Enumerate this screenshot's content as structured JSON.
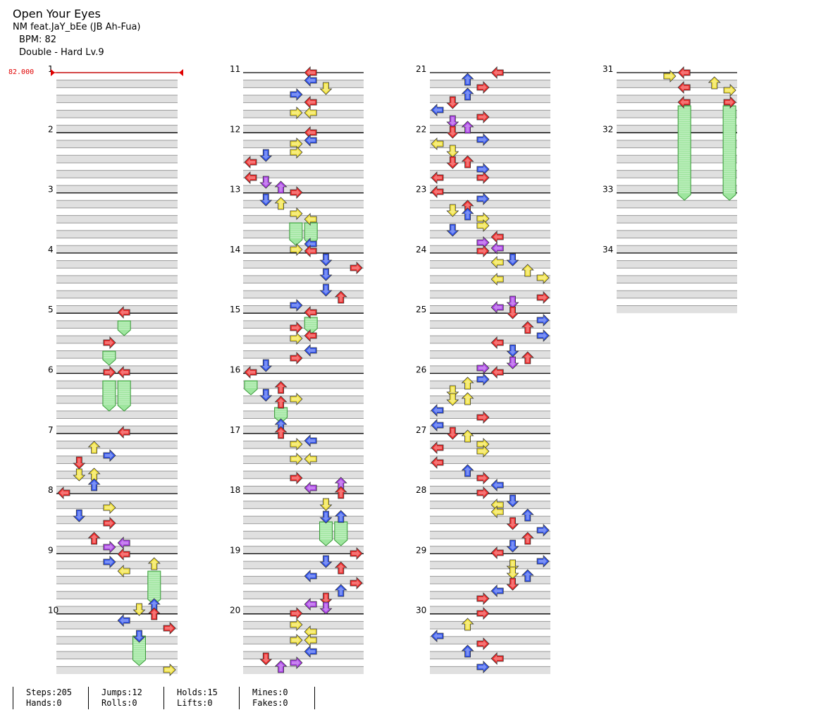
{
  "song": {
    "title": "Open Your Eyes",
    "artist": "NM feat.JaY_bEe (JB Ah-Fua)",
    "bpm_label": "BPM: 82",
    "difficulty_label": "Double - Hard  Lv.9"
  },
  "bpm_marker": "82.000",
  "measure_numbers": [
    "1",
    "2",
    "3",
    "4",
    "5",
    "6",
    "7",
    "8",
    "9",
    "10",
    "11",
    "12",
    "13",
    "14",
    "15",
    "16",
    "17",
    "18",
    "19",
    "20",
    "21",
    "22",
    "23",
    "24",
    "25",
    "26",
    "27",
    "28",
    "29",
    "30",
    "31",
    "32",
    "33",
    "34"
  ],
  "colors": {
    "red": "#ee2a2a",
    "blue": "#3355ee",
    "yellow": "#f2e23a",
    "purple": "#aa3fe6",
    "hold": "#9ee69e",
    "stripe": "#e0e0e0",
    "bpm": "#e00000"
  },
  "stats": {
    "steps": "Steps:205",
    "jumps": "Jumps:12",
    "holds": "Holds:15",
    "mines": "Mines:0",
    "hands": "Hands:0",
    "rolls": "Rolls:0",
    "lifts": "Lifts:0",
    "fakes": "Fakes:0"
  }
}
